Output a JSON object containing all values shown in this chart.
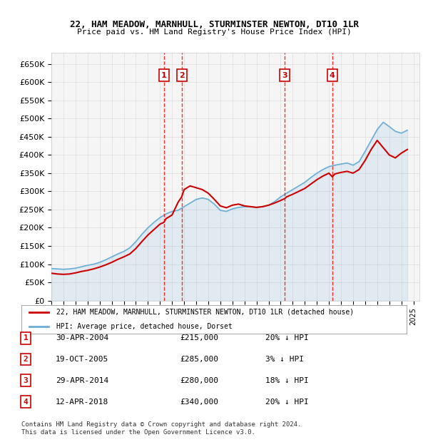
{
  "title": "22, HAM MEADOW, MARNHULL, STURMINSTER NEWTON, DT10 1LR",
  "subtitle": "Price paid vs. HM Land Registry's House Price Index (HPI)",
  "ylabel": "",
  "ylim": [
    0,
    680000
  ],
  "yticks": [
    0,
    50000,
    100000,
    150000,
    200000,
    250000,
    300000,
    350000,
    400000,
    450000,
    500000,
    550000,
    600000,
    650000
  ],
  "ytick_labels": [
    "£0",
    "£50K",
    "£100K",
    "£150K",
    "£200K",
    "£250K",
    "£300K",
    "£350K",
    "£400K",
    "£450K",
    "£500K",
    "£550K",
    "£600K",
    "£650K"
  ],
  "xlim_start": 1995.0,
  "xlim_end": 2025.5,
  "hpi_color": "#6baed6",
  "price_color": "#cc0000",
  "transaction_line_color": "#ff0000",
  "background_color": "#ffffff",
  "plot_bg_color": "#f5f5f5",
  "grid_color": "#dddddd",
  "transactions": [
    {
      "num": 1,
      "year": 2004.33,
      "price": 215000,
      "date": "30-APR-2004",
      "pct": "20%",
      "label": "£215,000"
    },
    {
      "num": 2,
      "year": 2005.8,
      "price": 285000,
      "date": "19-OCT-2005",
      "pct": "3%",
      "label": "£285,000"
    },
    {
      "num": 3,
      "year": 2014.33,
      "price": 280000,
      "date": "29-APR-2014",
      "pct": "18%",
      "label": "£280,000"
    },
    {
      "num": 4,
      "year": 2018.28,
      "price": 340000,
      "date": "12-APR-2018",
      "pct": "20%",
      "label": "£340,000"
    }
  ],
  "legend_line1": "22, HAM MEADOW, MARNHULL, STURMINSTER NEWTON, DT10 1LR (detached house)",
  "legend_line2": "HPI: Average price, detached house, Dorset",
  "table_rows": [
    {
      "num": "1",
      "date": "30-APR-2004",
      "price": "£215,000",
      "pct": "20% ↓ HPI"
    },
    {
      "num": "2",
      "date": "19-OCT-2005",
      "price": "£285,000",
      "pct": "3% ↓ HPI"
    },
    {
      "num": "3",
      "date": "29-APR-2014",
      "price": "£280,000",
      "pct": "18% ↓ HPI"
    },
    {
      "num": "4",
      "date": "12-APR-2018",
      "price": "£340,000",
      "pct": "20% ↓ HPI"
    }
  ],
  "footer": "Contains HM Land Registry data © Crown copyright and database right 2024.\nThis data is licensed under the Open Government Licence v3.0.",
  "hpi_data_x": [
    1995.0,
    1995.5,
    1996.0,
    1996.5,
    1997.0,
    1997.5,
    1998.0,
    1998.5,
    1999.0,
    1999.5,
    2000.0,
    2000.5,
    2001.0,
    2001.5,
    2002.0,
    2002.5,
    2003.0,
    2003.5,
    2004.0,
    2004.5,
    2005.0,
    2005.5,
    2006.0,
    2006.5,
    2007.0,
    2007.5,
    2008.0,
    2008.5,
    2009.0,
    2009.5,
    2010.0,
    2010.5,
    2011.0,
    2011.5,
    2012.0,
    2012.5,
    2013.0,
    2013.5,
    2014.0,
    2014.5,
    2015.0,
    2015.5,
    2016.0,
    2016.5,
    2017.0,
    2017.5,
    2018.0,
    2018.5,
    2019.0,
    2019.5,
    2020.0,
    2020.5,
    2021.0,
    2021.5,
    2022.0,
    2022.5,
    2023.0,
    2023.5,
    2024.0,
    2024.5
  ],
  "hpi_data_y": [
    88000,
    87000,
    86000,
    87000,
    89000,
    93000,
    97000,
    100000,
    105000,
    112000,
    120000,
    128000,
    135000,
    145000,
    162000,
    182000,
    200000,
    215000,
    228000,
    238000,
    245000,
    248000,
    258000,
    268000,
    278000,
    282000,
    278000,
    265000,
    248000,
    245000,
    252000,
    256000,
    258000,
    258000,
    256000,
    258000,
    262000,
    272000,
    285000,
    295000,
    305000,
    315000,
    325000,
    338000,
    350000,
    360000,
    368000,
    372000,
    375000,
    378000,
    372000,
    382000,
    410000,
    440000,
    470000,
    490000,
    478000,
    465000,
    460000,
    468000
  ],
  "price_data_x": [
    1995.0,
    1995.5,
    1996.0,
    1996.5,
    1997.0,
    1997.5,
    1998.0,
    1998.5,
    1999.0,
    1999.5,
    2000.0,
    2000.5,
    2001.0,
    2001.5,
    2002.0,
    2002.5,
    2003.0,
    2003.5,
    2004.0,
    2004.33,
    2004.5,
    2005.0,
    2005.5,
    2005.8,
    2006.0,
    2006.5,
    2007.0,
    2007.5,
    2008.0,
    2008.5,
    2009.0,
    2009.5,
    2010.0,
    2010.5,
    2011.0,
    2011.5,
    2012.0,
    2012.5,
    2013.0,
    2013.5,
    2014.0,
    2014.33,
    2014.5,
    2015.0,
    2015.5,
    2016.0,
    2016.5,
    2017.0,
    2017.5,
    2018.0,
    2018.28,
    2018.5,
    2019.0,
    2019.5,
    2020.0,
    2020.5,
    2021.0,
    2021.5,
    2022.0,
    2022.5,
    2023.0,
    2023.5,
    2024.0,
    2024.5
  ],
  "price_data_y": [
    75000,
    73000,
    72000,
    73000,
    76000,
    80000,
    83000,
    87000,
    92000,
    98000,
    105000,
    113000,
    120000,
    128000,
    143000,
    162000,
    180000,
    195000,
    210000,
    215000,
    225000,
    235000,
    270000,
    285000,
    305000,
    315000,
    310000,
    305000,
    295000,
    278000,
    260000,
    255000,
    262000,
    265000,
    260000,
    258000,
    256000,
    258000,
    262000,
    268000,
    275000,
    280000,
    285000,
    292000,
    300000,
    308000,
    320000,
    332000,
    342000,
    350000,
    340000,
    348000,
    352000,
    355000,
    350000,
    360000,
    385000,
    415000,
    440000,
    420000,
    400000,
    392000,
    405000,
    415000
  ]
}
